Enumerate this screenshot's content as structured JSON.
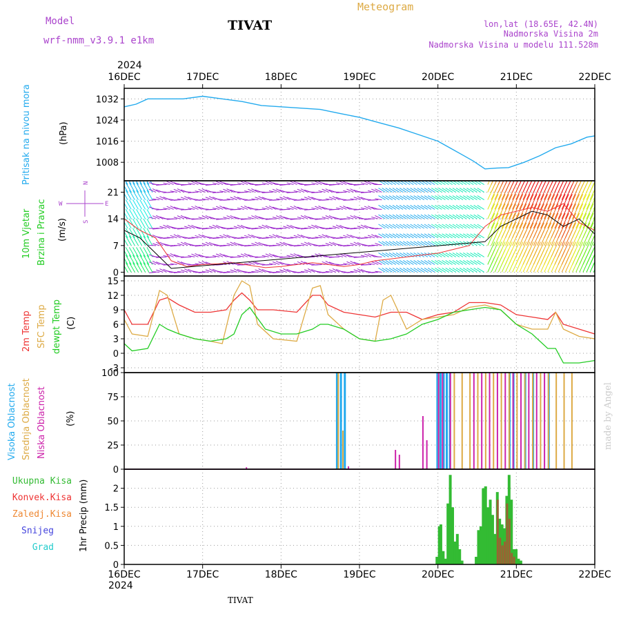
{
  "header": {
    "model_label": "Model",
    "model_name": "wrf-nmm_v3.9.1  e1km",
    "station": "TIVAT",
    "meteogram": "Meteogram",
    "lonlat": "lon,lat (18.65E, 42.4N)",
    "alt": "Nadmorska Visina 2m",
    "model_alt": "Nadmorska Visina u modelu 111.528m"
  },
  "footer": {
    "station": "TIVAT",
    "credit": "made by Angel"
  },
  "colors": {
    "pressure": "#22aaee",
    "temp2m": "#ee3333",
    "sfctemp": "#ddaa44",
    "dewpt": "#22cc22",
    "high_cloud": "#22aaee",
    "mid_cloud": "#ddaa44",
    "low_cloud": "#cc22aa",
    "precip_total": "#33bb33",
    "precip_conv": "#dd3333",
    "label_purple": "#aa44cc"
  },
  "time_axis": {
    "year": "2024",
    "ticks": [
      "16DEC",
      "17DEC",
      "18DEC",
      "19DEC",
      "20DEC",
      "21DEC",
      "22DEC"
    ]
  },
  "wind_compass": {
    "n": "N",
    "s": "S",
    "w": "W",
    "e": "E"
  },
  "chart_data": [
    {
      "id": "pressure",
      "type": "line",
      "ylabel_parts": [
        "Pritisak na nivou mora",
        "(hPa)"
      ],
      "ylim": [
        1001,
        1036
      ],
      "yticks": [
        1008,
        1016,
        1024,
        1032
      ],
      "series": [
        {
          "x": [
            0,
            0.15,
            0.3,
            0.5,
            0.75,
            1.0,
            1.25,
            1.5,
            1.75,
            2.0,
            2.25,
            2.5,
            2.75,
            3.0,
            3.25,
            3.5,
            3.75,
            4.0,
            4.15,
            4.3,
            4.45,
            4.6,
            4.75,
            4.9,
            5.1,
            5.3,
            5.5,
            5.7,
            5.9,
            6.0
          ],
          "y": [
            1029,
            1030,
            1032,
            1032,
            1032,
            1033,
            1032,
            1031,
            1029.5,
            1029,
            1028.5,
            1028,
            1026.5,
            1025,
            1023,
            1021,
            1018.5,
            1016,
            1013.5,
            1011,
            1008.5,
            1005.5,
            1005.8,
            1006,
            1008,
            1010.5,
            1013.5,
            1015,
            1017.5,
            1018
          ]
        }
      ]
    },
    {
      "id": "wind",
      "type": "line",
      "ylabel_parts": [
        "10m Vjetar",
        "Brzina i Pravac",
        "(m/s)"
      ],
      "ylim": [
        -1,
        24
      ],
      "yticks": [
        0,
        7,
        14,
        21
      ],
      "series": [
        {
          "name": "speed_red",
          "x": [
            0,
            0.2,
            0.4,
            0.6,
            0.8,
            1.0,
            1.2,
            1.4,
            1.6,
            1.8,
            2.0,
            2.2,
            2.4,
            2.6,
            2.8,
            3.0,
            3.2,
            3.4,
            3.6,
            3.8,
            4.0,
            4.2,
            4.4,
            4.6,
            4.8,
            5.0,
            5.2,
            5.4,
            5.6,
            5.8,
            6.0
          ],
          "y": [
            14,
            11,
            9,
            3,
            1.5,
            2,
            2.2,
            2.5,
            1.8,
            1.2,
            1.5,
            2,
            2.5,
            2,
            1.5,
            2,
            3,
            3.5,
            4,
            4.5,
            5,
            6,
            7,
            12,
            15,
            16,
            17,
            16,
            18,
            13,
            11
          ]
        },
        {
          "name": "speed_black",
          "x": [
            0,
            0.2,
            0.4,
            0.6,
            4.6,
            4.8,
            5.0,
            5.2,
            5.4,
            5.6,
            5.8,
            6.0
          ],
          "y": [
            11,
            9,
            5,
            1,
            8,
            12,
            14,
            16,
            15,
            12,
            14,
            10
          ]
        }
      ]
    },
    {
      "id": "temperature",
      "type": "line",
      "ylabel_parts": [
        "2m Temp",
        "SFC Temp",
        "dewpt Temp",
        "(C)"
      ],
      "ylim": [
        -4,
        16
      ],
      "yticks": [
        -3,
        0,
        3,
        6,
        9,
        12,
        15
      ],
      "series": [
        {
          "name": "2m Temp",
          "x": [
            0,
            0.1,
            0.3,
            0.45,
            0.55,
            0.7,
            0.9,
            1.1,
            1.3,
            1.4,
            1.5,
            1.6,
            1.7,
            1.9,
            2.2,
            2.4,
            2.5,
            2.6,
            2.8,
            3.0,
            3.2,
            3.4,
            3.6,
            3.8,
            4.0,
            4.2,
            4.4,
            4.6,
            4.8,
            5.0,
            5.2,
            5.4,
            5.5,
            5.6,
            5.8,
            6.0
          ],
          "y": [
            9,
            6,
            6,
            11,
            11.5,
            10,
            8.5,
            8.5,
            9,
            11,
            12.5,
            11,
            9,
            9,
            8.5,
            12,
            12,
            10,
            8.5,
            8,
            7.5,
            8.5,
            8.5,
            7,
            8,
            8.5,
            10.5,
            10.5,
            10,
            8,
            7.5,
            7,
            8.5,
            6,
            5,
            4
          ]
        },
        {
          "name": "SFC Temp",
          "x": [
            0,
            0.1,
            0.3,
            0.45,
            0.55,
            0.7,
            0.9,
            1.1,
            1.25,
            1.4,
            1.5,
            1.6,
            1.7,
            1.9,
            2.2,
            2.4,
            2.5,
            2.6,
            2.8,
            3.0,
            3.2,
            3.3,
            3.4,
            3.6,
            3.8,
            4.0,
            4.2,
            4.4,
            4.6,
            4.8,
            5.0,
            5.2,
            5.4,
            5.5,
            5.6,
            5.8,
            6.0
          ],
          "y": [
            7,
            4,
            3.5,
            13,
            12,
            4,
            3,
            2.5,
            2,
            12,
            15,
            14,
            6,
            3,
            2.5,
            13.5,
            14,
            8,
            5,
            3,
            2.5,
            11,
            12,
            5,
            7,
            7.5,
            8,
            9.5,
            10,
            9,
            6,
            5,
            5,
            8.5,
            5,
            3.5,
            3
          ]
        },
        {
          "name": "dewpt Temp",
          "x": [
            0,
            0.1,
            0.3,
            0.45,
            0.55,
            0.7,
            0.9,
            1.1,
            1.3,
            1.4,
            1.5,
            1.6,
            1.8,
            2.0,
            2.2,
            2.4,
            2.5,
            2.6,
            2.8,
            3.0,
            3.2,
            3.4,
            3.6,
            3.8,
            4.0,
            4.2,
            4.4,
            4.6,
            4.8,
            5.0,
            5.2,
            5.4,
            5.5,
            5.6,
            5.8,
            6.0
          ],
          "y": [
            2,
            0.5,
            1,
            6,
            5,
            4,
            3,
            2.5,
            3,
            4,
            8,
            9.5,
            5,
            4,
            4,
            5,
            6,
            6,
            5,
            3,
            2.5,
            3,
            4,
            6,
            7,
            8.5,
            9,
            9.5,
            9,
            6,
            4,
            1,
            1,
            -2,
            -2,
            -1.5
          ]
        }
      ]
    },
    {
      "id": "clouds",
      "type": "bar",
      "ylabel_parts": [
        "Visoka Oblacnost",
        "Srednja Oblacnost",
        "Niska Oblacnost",
        "(%)"
      ],
      "ylim": [
        0,
        100
      ],
      "yticks": [
        0,
        25,
        50,
        75,
        100
      ],
      "high": {
        "x": [
          2.7,
          2.75,
          2.8,
          3.98,
          4.02,
          4.06,
          4.1,
          4.14,
          4.9,
          4.95,
          5.1,
          5.2,
          5.4
        ],
        "y": [
          100,
          100,
          100,
          100,
          100,
          100,
          100,
          100,
          100,
          100,
          100,
          100,
          100
        ]
      },
      "mid": {
        "x": [
          2.72,
          2.78,
          4.0,
          4.2,
          4.3,
          4.4,
          4.5,
          4.6,
          4.7,
          4.8,
          4.9,
          5.0,
          5.1,
          5.2,
          5.3,
          5.4,
          5.5,
          5.6,
          5.7
        ],
        "y": [
          100,
          40,
          100,
          100,
          100,
          100,
          100,
          100,
          100,
          100,
          100,
          100,
          100,
          100,
          100,
          100,
          100,
          100,
          100
        ]
      },
      "low": {
        "x": [
          1.55,
          2.85,
          3.45,
          3.5,
          3.8,
          3.85,
          4.0,
          4.05,
          4.15,
          4.45,
          4.55,
          4.65,
          4.75,
          4.85,
          4.95,
          5.05,
          5.15,
          5.25,
          5.35
        ],
        "y": [
          2,
          3,
          20,
          15,
          55,
          30,
          100,
          100,
          100,
          100,
          100,
          100,
          100,
          100,
          100,
          100,
          100,
          100,
          100
        ]
      }
    },
    {
      "id": "precip",
      "type": "bar",
      "ylabel_parts": [
        "1hr Precip (mm)"
      ],
      "ylim": [
        0,
        2.5
      ],
      "yticks": [
        0,
        0.5,
        1,
        1.5,
        2
      ],
      "legend": [
        "Ukupna Kisa",
        "Konvek.Kisa",
        "Zaledj.Kisa",
        "Snijeg",
        "Grad"
      ],
      "total": {
        "x": [
          3.97,
          4.0,
          4.02,
          4.05,
          4.08,
          4.11,
          4.14,
          4.17,
          4.2,
          4.23,
          4.26,
          4.29,
          4.47,
          4.5,
          4.53,
          4.56,
          4.59,
          4.62,
          4.65,
          4.68,
          4.71,
          4.74,
          4.77,
          4.8,
          4.83,
          4.86,
          4.89,
          4.92,
          4.95,
          4.98,
          5.01,
          5.04
        ],
        "y": [
          0.2,
          1.0,
          1.05,
          0.35,
          0.15,
          1.6,
          2.35,
          1.5,
          0.6,
          0.8,
          0.4,
          0.1,
          0.2,
          0.9,
          1.0,
          2.0,
          2.05,
          1.5,
          1.7,
          1.3,
          0.8,
          1.9,
          1.2,
          1.05,
          0.95,
          1.8,
          2.35,
          1.7,
          0.4,
          0.4,
          0.15,
          0.1
        ]
      },
      "conv": {
        "x": [
          4.74,
          4.77,
          4.8,
          4.83,
          4.86,
          4.89,
          4.92,
          4.95
        ],
        "y": [
          1.7,
          0.7,
          0.5,
          0.6,
          1.6,
          1.2,
          0.3,
          0.2
        ]
      }
    }
  ]
}
